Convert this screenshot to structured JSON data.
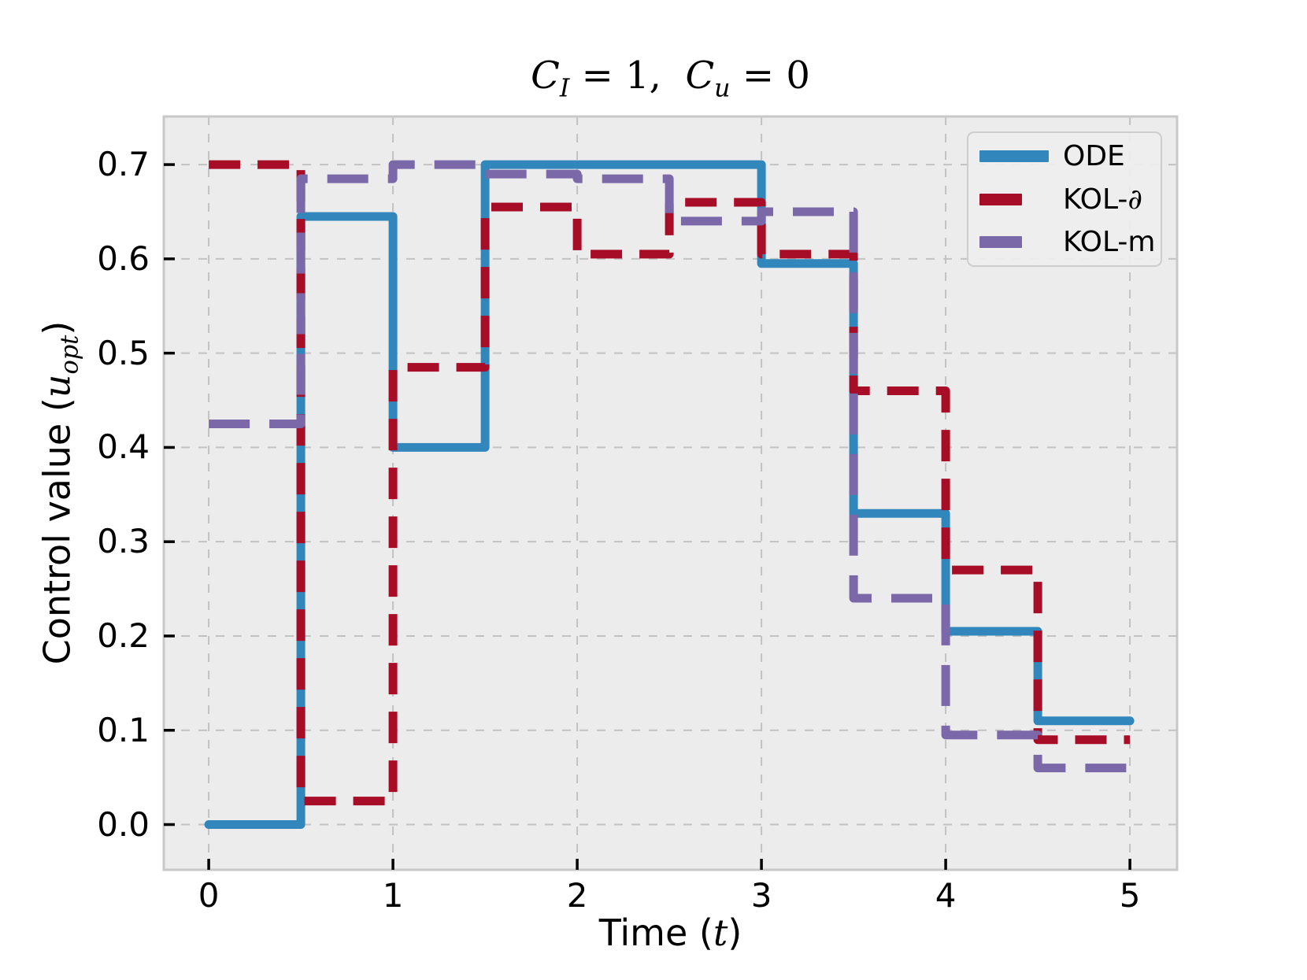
{
  "figure": {
    "title": {
      "var1": "C",
      "sub1": "I",
      "mid": " = 1,  ",
      "var2": "C",
      "sub2": "u",
      "end": " = 0"
    },
    "xlabel": {
      "prefix": "Time (",
      "var": "t",
      "suffix": ")"
    },
    "ylabel": {
      "prefix": "Control value (",
      "var": "u",
      "sub": "opt",
      "suffix": ")"
    }
  },
  "chart_data": {
    "type": "line",
    "subtype": "step-post",
    "title": "C_I = 1,  C_u = 0",
    "xlabel": "Time (t)",
    "ylabel": "Control value (u_opt)",
    "x_edges": [
      0,
      0.5,
      1,
      1.5,
      2,
      2.5,
      3,
      3.5,
      4,
      4.5,
      5
    ],
    "series": [
      {
        "name": "ODE",
        "color": "#3187bc",
        "style": "solid",
        "dash": [],
        "values": [
          0.0,
          0.645,
          0.4,
          0.7,
          0.7,
          0.7,
          0.595,
          0.33,
          0.205,
          0.11
        ]
      },
      {
        "name": "KOL-∂",
        "color": "#a80d28",
        "style": "dashed",
        "dash": [
          40,
          22
        ],
        "values": [
          0.7,
          0.025,
          0.485,
          0.655,
          0.605,
          0.66,
          0.605,
          0.46,
          0.27,
          0.09
        ]
      },
      {
        "name": "KOL-m",
        "color": "#7b68a8",
        "style": "dashed",
        "dash": [
          52,
          25
        ],
        "values": [
          0.425,
          0.685,
          0.7,
          0.69,
          0.685,
          0.64,
          0.65,
          0.24,
          0.095,
          0.06
        ]
      }
    ],
    "xticks": [
      "0",
      "1",
      "2",
      "3",
      "4",
      "5"
    ],
    "yticks": [
      "0.0",
      "0.1",
      "0.2",
      "0.3",
      "0.4",
      "0.5",
      "0.6",
      "0.7"
    ],
    "xlim": [
      -0.244,
      5.256
    ],
    "ylim": [
      -0.048,
      0.751
    ],
    "grid": true,
    "legend_position": "upper right"
  },
  "legend": {
    "items": [
      {
        "prefix": "ODE",
        "math": ""
      },
      {
        "prefix": "KOL-",
        "math": "∂"
      },
      {
        "prefix": "KOL-m",
        "math": ""
      }
    ]
  },
  "colors": {
    "figure_bg": "#ffffff",
    "axes_bg": "#ececec",
    "grid": "#c2c2c2",
    "spine": "#c8c8c8",
    "tick": "#000000",
    "text": "#000000"
  }
}
